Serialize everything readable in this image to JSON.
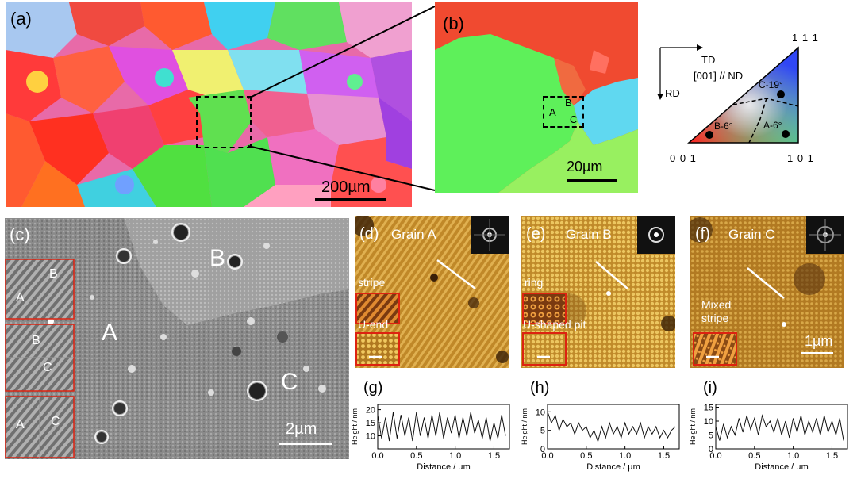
{
  "figure": {
    "panel_a": {
      "label": "(a)",
      "scale_bar": "200µm"
    },
    "panel_b": {
      "label": "(b)",
      "grain_labels": [
        "A",
        "B",
        "C"
      ],
      "scale_bar": "20µm"
    },
    "ipf_key": {
      "direction_td": "TD",
      "direction_rd": "RD",
      "normal": "[001] // ND",
      "corner_111": "1 1 1",
      "corner_001": "0 0 1",
      "corner_101": "1 0 1",
      "points": [
        "C-19°",
        "B-6°",
        "A-6°"
      ],
      "colors": {
        "red": "#ff2020",
        "green": "#20d040",
        "blue": "#3040ff"
      }
    },
    "panel_c": {
      "label": "(c)",
      "grain_labels": [
        "A",
        "B",
        "C"
      ],
      "inset_1": [
        "B",
        "A"
      ],
      "inset_2": [
        "B",
        "C"
      ],
      "inset_3": [
        "A",
        "C"
      ],
      "scale_bar": "2µm"
    },
    "panel_d": {
      "label": "(d)",
      "title": "Grain A",
      "inset_top": "stripe",
      "inset_bottom": "U-end"
    },
    "panel_e": {
      "label": "(e)",
      "title": "Grain B",
      "inset_top": "ring",
      "inset_bottom": "U-shaped pit"
    },
    "panel_f": {
      "label": "(f)",
      "title": "Grain C",
      "inset_text": "Mixed stripe",
      "scale_bar": "1µm"
    },
    "colors": {
      "afm_base": "#c8902a",
      "inset_border": "#dd2211",
      "sem_bg": "#8c8c8c"
    }
  },
  "chart_data": [
    {
      "type": "line",
      "panel": "(g)",
      "xlabel": "Distance / µm",
      "ylabel": "Height / nm",
      "xlim": [
        0,
        1.7
      ],
      "ylim": [
        5,
        22
      ],
      "xticks": [
        "0.0",
        "0.5",
        "1.0",
        "1.5"
      ],
      "yticks": [
        "10",
        "15",
        "20"
      ],
      "x": [
        0,
        0.05,
        0.1,
        0.15,
        0.2,
        0.25,
        0.3,
        0.35,
        0.4,
        0.45,
        0.5,
        0.55,
        0.6,
        0.65,
        0.7,
        0.75,
        0.8,
        0.85,
        0.9,
        0.95,
        1.0,
        1.05,
        1.1,
        1.15,
        1.2,
        1.25,
        1.3,
        1.35,
        1.4,
        1.45,
        1.5,
        1.55,
        1.6,
        1.65
      ],
      "y": [
        18,
        9,
        17,
        8,
        19,
        9,
        18,
        10,
        17,
        8,
        19,
        10,
        17,
        9,
        18,
        10,
        19,
        9,
        17,
        11,
        18,
        9,
        17,
        10,
        19,
        11,
        16,
        9,
        17,
        8,
        15,
        9,
        18,
        10
      ]
    },
    {
      "type": "line",
      "panel": "(h)",
      "xlabel": "Distance / µm",
      "ylabel": "Height / nm",
      "xlim": [
        0,
        1.7
      ],
      "ylim": [
        0,
        12
      ],
      "xticks": [
        "0.0",
        "0.5",
        "1.0",
        "1.5"
      ],
      "yticks": [
        "0",
        "5",
        "10"
      ],
      "x": [
        0,
        0.05,
        0.1,
        0.15,
        0.2,
        0.25,
        0.3,
        0.35,
        0.4,
        0.45,
        0.5,
        0.55,
        0.6,
        0.65,
        0.7,
        0.75,
        0.8,
        0.85,
        0.9,
        0.95,
        1.0,
        1.05,
        1.1,
        1.15,
        1.2,
        1.25,
        1.3,
        1.35,
        1.4,
        1.45,
        1.5,
        1.55,
        1.6,
        1.65
      ],
      "y": [
        10,
        7,
        9,
        5,
        8,
        6,
        7,
        4,
        7,
        5,
        6,
        3,
        5,
        2,
        6,
        3,
        7,
        4,
        6,
        3,
        7,
        4,
        6,
        4,
        7,
        3,
        6,
        4,
        6,
        3,
        5,
        3,
        5,
        6
      ]
    },
    {
      "type": "line",
      "panel": "(i)",
      "xlabel": "Distance / µm",
      "ylabel": "Height / nm",
      "xlim": [
        0,
        1.7
      ],
      "ylim": [
        0,
        16
      ],
      "xticks": [
        "0.0",
        "0.5",
        "1.0",
        "1.5"
      ],
      "yticks": [
        "0",
        "5",
        "10",
        "15"
      ],
      "x": [
        0,
        0.05,
        0.1,
        0.15,
        0.2,
        0.25,
        0.3,
        0.35,
        0.4,
        0.45,
        0.5,
        0.55,
        0.6,
        0.65,
        0.7,
        0.75,
        0.8,
        0.85,
        0.9,
        0.95,
        1.0,
        1.05,
        1.1,
        1.15,
        1.2,
        1.25,
        1.3,
        1.35,
        1.4,
        1.45,
        1.5,
        1.55,
        1.6,
        1.65
      ],
      "y": [
        8,
        3,
        9,
        4,
        8,
        5,
        11,
        6,
        12,
        7,
        11,
        5,
        12,
        8,
        10,
        6,
        11,
        5,
        10,
        4,
        11,
        6,
        12,
        5,
        10,
        6,
        11,
        5,
        12,
        6,
        10,
        5,
        11,
        3
      ]
    }
  ]
}
